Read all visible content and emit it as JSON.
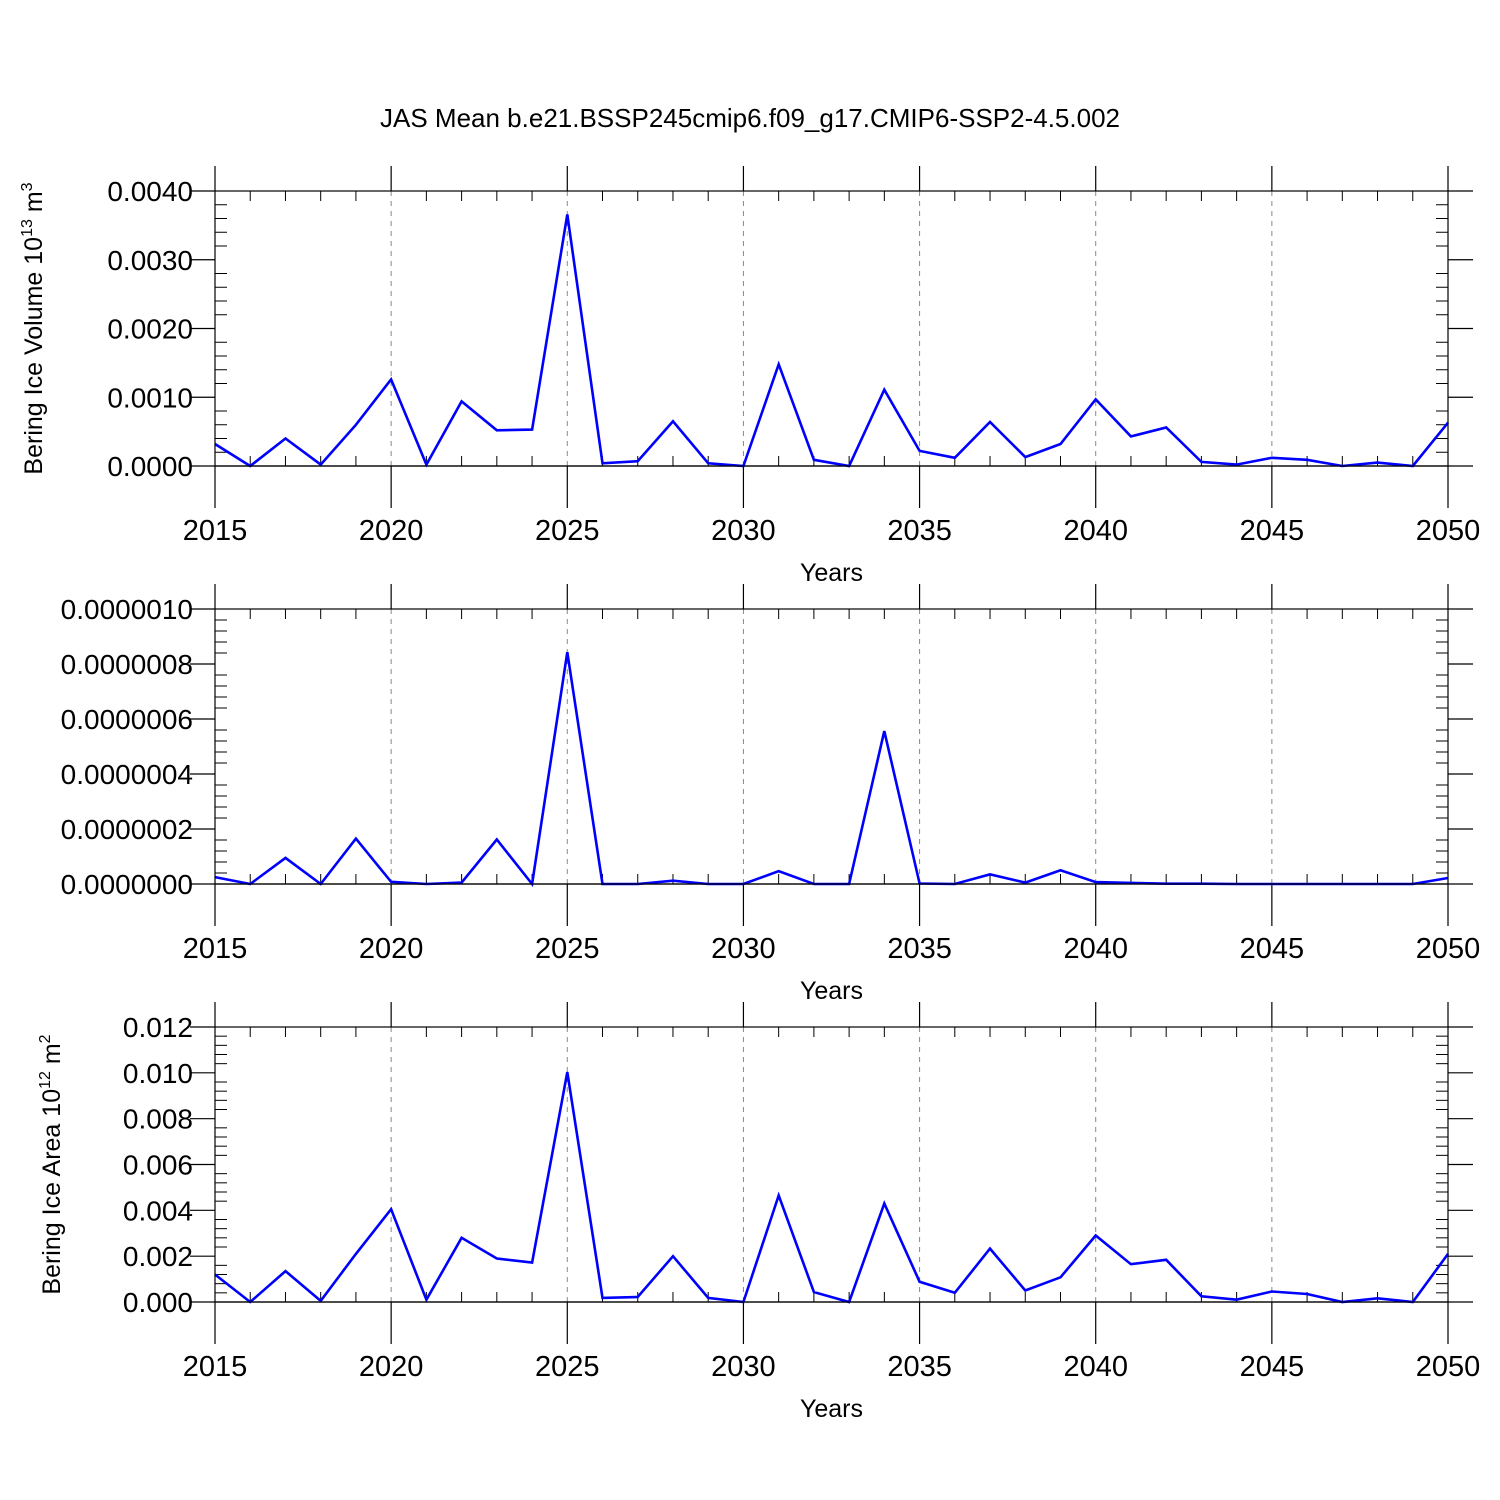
{
  "figure": {
    "title": "JAS Mean b.e21.BSSP245cmip6.f09_g17.CMIP6-SSP2-4.5.002"
  },
  "chart_data": [
    {
      "type": "line",
      "xlabel": "Years",
      "ylabel_main": "Bering Ice Volume 10",
      "ylabel_exp": "13",
      "ylabel_unit": " m",
      "ylabel_unit_exp": "3",
      "xlim": [
        2015,
        2050
      ],
      "ylim": [
        0,
        0.004
      ],
      "x_ticks": [
        "2015",
        "2020",
        "2025",
        "2030",
        "2035",
        "2040",
        "2045",
        "2050"
      ],
      "y_ticks": [
        "0.0000",
        "0.0010",
        "0.0020",
        "0.0030",
        "0.0040"
      ],
      "line_color": "#0000ff",
      "grid_color": "#888888",
      "x": [
        2015,
        2016,
        2017,
        2018,
        2019,
        2020,
        2021,
        2022,
        2023,
        2024,
        2025,
        2026,
        2027,
        2028,
        2029,
        2030,
        2031,
        2032,
        2033,
        2034,
        2035,
        2036,
        2037,
        2038,
        2039,
        2040,
        2041,
        2042,
        2043,
        2044,
        2045,
        2046,
        2047,
        2048,
        2049,
        2050
      ],
      "values": [
        0.00032,
        0.0,
        0.0004,
        2e-05,
        0.0006,
        0.00126,
        2e-05,
        0.00094,
        0.00052,
        0.00053,
        0.00366,
        4e-05,
        7e-05,
        0.00065,
        4e-05,
        0.0,
        0.00148,
        9e-05,
        0.0,
        0.00111,
        0.00022,
        0.00012,
        0.00064,
        0.00013,
        0.00032,
        0.00097,
        0.00043,
        0.00056,
        6e-05,
        2e-05,
        0.00012,
        9e-05,
        0.0,
        5e-05,
        0.0,
        0.00063
      ]
    },
    {
      "type": "line",
      "xlabel": "Years",
      "xlim": [
        2015,
        2050
      ],
      "ylim": [
        0,
        1e-06
      ],
      "x_ticks": [
        "2015",
        "2020",
        "2025",
        "2030",
        "2035",
        "2040",
        "2045",
        "2050"
      ],
      "y_ticks": [
        "0.0000000",
        "0.0000002",
        "0.0000004",
        "0.0000006",
        "0.0000008",
        "0.0000010"
      ],
      "line_color": "#0000ff",
      "grid_color": "#888888",
      "x": [
        2015,
        2016,
        2017,
        2018,
        2019,
        2020,
        2021,
        2022,
        2023,
        2024,
        2025,
        2026,
        2027,
        2028,
        2029,
        2030,
        2031,
        2032,
        2033,
        2034,
        2035,
        2036,
        2037,
        2038,
        2039,
        2040,
        2041,
        2042,
        2043,
        2044,
        2045,
        2046,
        2047,
        2048,
        2049,
        2050
      ],
      "values": [
        2.5e-08,
        0.0,
        9.5e-08,
        0.0,
        1.65e-07,
        8e-09,
        0.0,
        5e-09,
        1.62e-07,
        0.0,
        8.43e-07,
        0.0,
        0.0,
        1.2e-08,
        0.0,
        0.0,
        4.7e-08,
        0.0,
        0.0,
        5.56e-07,
        2e-09,
        0.0,
        3.5e-08,
        5e-09,
        5e-08,
        7e-09,
        4e-09,
        1e-09,
        1e-09,
        0.0,
        0.0,
        0.0,
        0.0,
        0.0,
        0.0,
        2.2e-08
      ]
    },
    {
      "type": "line",
      "xlabel": "Years",
      "ylabel_main": "Bering Ice Area 10",
      "ylabel_exp": "12",
      "ylabel_unit": " m",
      "ylabel_unit_exp": "2",
      "xlim": [
        2015,
        2050
      ],
      "ylim": [
        0,
        0.012
      ],
      "x_ticks": [
        "2015",
        "2020",
        "2025",
        "2030",
        "2035",
        "2040",
        "2045",
        "2050"
      ],
      "y_ticks": [
        "0.000",
        "0.002",
        "0.004",
        "0.006",
        "0.008",
        "0.010",
        "0.012"
      ],
      "line_color": "#0000ff",
      "grid_color": "#888888",
      "x": [
        2015,
        2016,
        2017,
        2018,
        2019,
        2020,
        2021,
        2022,
        2023,
        2024,
        2025,
        2026,
        2027,
        2028,
        2029,
        2030,
        2031,
        2032,
        2033,
        2034,
        2035,
        2036,
        2037,
        2038,
        2039,
        2040,
        2041,
        2042,
        2043,
        2044,
        2045,
        2046,
        2047,
        2048,
        2049,
        2050
      ],
      "values": [
        0.0012,
        0.0,
        0.00135,
        5e-05,
        0.0021,
        0.00405,
        0.0001,
        0.0028,
        0.0019,
        0.00172,
        0.01003,
        0.00018,
        0.00022,
        0.002,
        0.00018,
        0.0,
        0.00465,
        0.00043,
        0.0,
        0.0043,
        0.00088,
        0.0004,
        0.00233,
        0.0005,
        0.00108,
        0.0029,
        0.00165,
        0.00184,
        0.00025,
        0.0001,
        0.00046,
        0.00035,
        0.0,
        0.00016,
        0.0,
        0.0021
      ]
    }
  ]
}
